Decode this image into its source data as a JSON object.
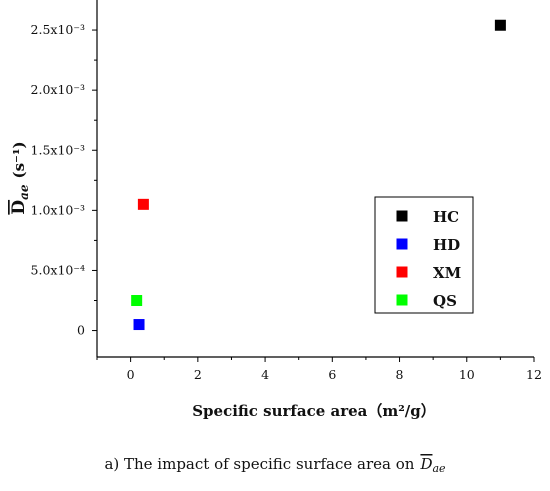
{
  "chart_data": {
    "type": "scatter",
    "title": "",
    "xlabel": "Specific surface area（m²/g）",
    "ylabel_main": "D",
    "ylabel_sub": "ae",
    "ylabel_unit": "(s⁻¹)",
    "xlim": [
      -1,
      12
    ],
    "ylim": [
      -0.00022,
      0.00275
    ],
    "x_ticks": [
      {
        "value": 0,
        "label": "0"
      },
      {
        "value": 2,
        "label": "2"
      },
      {
        "value": 4,
        "label": "4"
      },
      {
        "value": 6,
        "label": "6"
      },
      {
        "value": 8,
        "label": "8"
      },
      {
        "value": 10,
        "label": "10"
      },
      {
        "value": 12,
        "label": "12"
      }
    ],
    "y_ticks": [
      {
        "value": 0,
        "label": "0"
      },
      {
        "value": 0.0005,
        "label": "5.0x10⁻⁴"
      },
      {
        "value": 0.001,
        "label": "1.0x10⁻³"
      },
      {
        "value": 0.0015,
        "label": "1.5x10⁻³"
      },
      {
        "value": 0.002,
        "label": "2.0x10⁻³"
      },
      {
        "value": 0.0025,
        "label": "2.5x10⁻³"
      }
    ],
    "grid": false,
    "legend_position": "right",
    "series": [
      {
        "name": "HC",
        "color": "#000000",
        "x": [
          11.0
        ],
        "y": [
          0.00254
        ]
      },
      {
        "name": "HD",
        "color": "#0000ff",
        "x": [
          0.25
        ],
        "y": [
          5e-05
        ]
      },
      {
        "name": "XM",
        "color": "#ff0000",
        "x": [
          0.38
        ],
        "y": [
          0.00105
        ]
      },
      {
        "name": "QS",
        "color": "#00ff00",
        "x": [
          0.18
        ],
        "y": [
          0.00025
        ]
      }
    ]
  },
  "caption": {
    "prefix": "a) The impact of specific surface area on",
    "symbol_main": "D",
    "symbol_sub": "ae"
  }
}
